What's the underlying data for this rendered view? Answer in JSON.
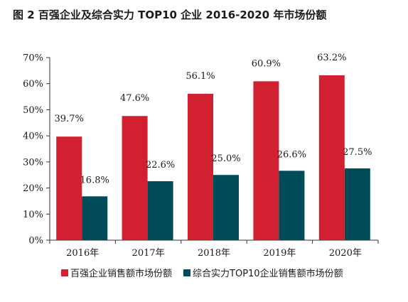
{
  "title": "图 2  百强企业及综合实力 TOP10 企业 2016-2020 年市场份额",
  "chart_data": {
    "type": "bar",
    "categories": [
      "2016年",
      "2017年",
      "2018年",
      "2019年",
      "2020年"
    ],
    "series": [
      {
        "name": "百强企业销售额市场份额",
        "values": [
          39.7,
          47.6,
          56.1,
          60.9,
          63.2
        ],
        "labels": [
          "39.7%",
          "47.6%",
          "56.1%",
          "60.9%",
          "63.2%"
        ],
        "color": "#d1202f"
      },
      {
        "name": "综合实力TOP10企业销售额市场份额",
        "values": [
          16.8,
          22.6,
          25.0,
          26.6,
          27.5
        ],
        "labels": [
          "16.8%",
          "22.6%",
          "25.0%",
          "26.6%",
          "27.5%"
        ],
        "color": "#004c5a"
      }
    ],
    "yticks": [
      "0%",
      "10%",
      "20%",
      "30%",
      "40%",
      "50%",
      "60%",
      "70%"
    ],
    "ylim": [
      0,
      70
    ],
    "grid": false,
    "legend": "bottom"
  }
}
